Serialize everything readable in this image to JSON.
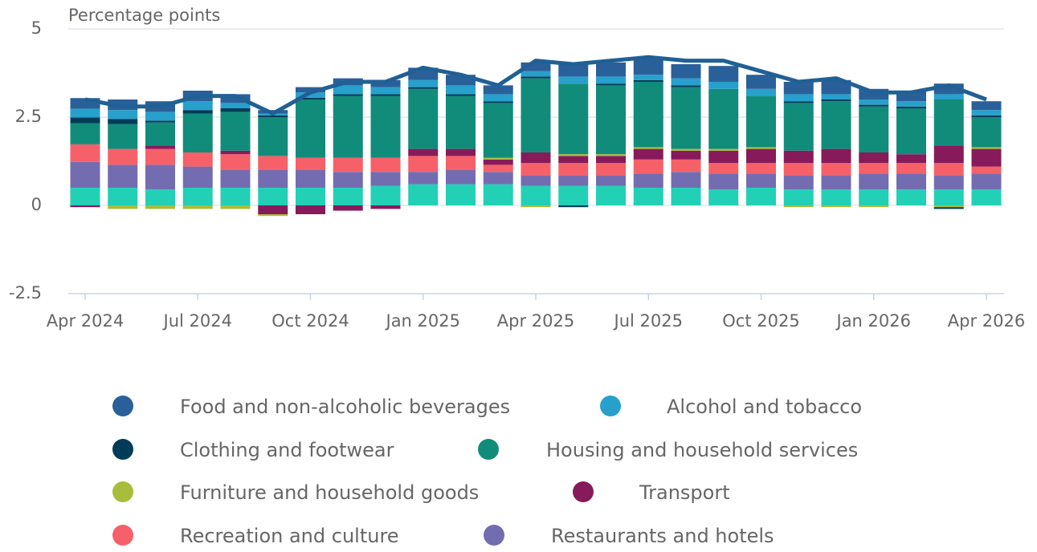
{
  "chart_data": {
    "type": "bar",
    "y_label": "Percentage points",
    "categories": [
      "Apr 2024",
      null,
      null,
      "Jul 2024",
      null,
      null,
      "Oct 2024",
      null,
      null,
      "Jan 2025",
      null,
      null,
      "Apr 2025",
      null,
      null,
      "Jul 2025",
      null,
      null,
      "Oct 2025",
      null,
      null,
      "Jan 2026",
      null,
      null,
      "Apr 2026"
    ],
    "ylim": [
      -2.5,
      5
    ],
    "yticks": [
      -2.5,
      0,
      2.5,
      5
    ],
    "grid": true,
    "stacked": true,
    "series": [
      {
        "name": "Food and non-alcoholic beverages",
        "color": "#2a6099",
        "values": [
          0.3,
          0.3,
          0.3,
          0.3,
          0.25,
          0.1,
          0.15,
          0.2,
          0.2,
          0.35,
          0.3,
          0.25,
          0.25,
          0.35,
          0.4,
          0.45,
          0.4,
          0.45,
          0.4,
          0.35,
          0.4,
          0.3,
          0.3,
          0.3,
          0.25
        ]
      },
      {
        "name": "Alcohol and tobacco",
        "color": "#27a0cc",
        "values": [
          0.25,
          0.25,
          0.25,
          0.25,
          0.15,
          0.05,
          0.15,
          0.25,
          0.2,
          0.2,
          0.25,
          0.2,
          0.15,
          0.2,
          0.2,
          0.15,
          0.2,
          0.2,
          0.2,
          0.2,
          0.15,
          0.15,
          0.15,
          0.15,
          0.15
        ]
      },
      {
        "name": "Clothing and footwear",
        "color": "#003c57",
        "values": [
          0.16,
          0.15,
          0.05,
          0.1,
          0.1,
          0.05,
          0.05,
          0.05,
          0.05,
          0.05,
          0.05,
          0.05,
          0.05,
          -0.05,
          0.05,
          0.05,
          0.05,
          0,
          0,
          0.05,
          0.05,
          0.05,
          0.05,
          -0.05,
          0.05
        ]
      },
      {
        "name": "Housing and household services",
        "color": "#118c7b",
        "values": [
          0.6,
          0.7,
          0.65,
          1.1,
          1.1,
          1.1,
          1.65,
          1.75,
          1.75,
          1.7,
          1.5,
          1.55,
          2.1,
          2.0,
          1.95,
          1.85,
          1.75,
          1.7,
          1.45,
          1.35,
          1.35,
          1.3,
          1.3,
          1.3,
          0.85
        ]
      },
      {
        "name": "Furniture and household goods",
        "color": "#a8bd3a",
        "values": [
          0,
          -0.1,
          -0.1,
          -0.1,
          -0.1,
          -0.05,
          0,
          0,
          0,
          0,
          0,
          0.05,
          -0.05,
          0.05,
          0.05,
          0.05,
          0.05,
          0.05,
          0.05,
          -0.05,
          -0.05,
          -0.05,
          0,
          -0.05,
          0.05
        ]
      },
      {
        "name": "Transport",
        "color": "#871a5b",
        "values": [
          -0.05,
          0,
          0.1,
          0,
          0.1,
          -0.25,
          -0.25,
          -0.15,
          -0.1,
          0.2,
          0.2,
          0.15,
          0.3,
          0.2,
          0.2,
          0.3,
          0.25,
          0.35,
          0.4,
          0.35,
          0.4,
          0.3,
          0.25,
          0.5,
          0.5
        ]
      },
      {
        "name": "Recreation and culture",
        "color": "#f66068",
        "values": [
          0.5,
          0.45,
          0.45,
          0.4,
          0.45,
          0.4,
          0.35,
          0.4,
          0.4,
          0.45,
          0.4,
          0.2,
          0.35,
          0.35,
          0.35,
          0.4,
          0.35,
          0.3,
          0.3,
          0.35,
          0.35,
          0.3,
          0.3,
          0.35,
          0.2
        ]
      },
      {
        "name": "Restaurants and hotels",
        "color": "#746cb1",
        "values": [
          0.73,
          0.65,
          0.7,
          0.6,
          0.5,
          0.5,
          0.5,
          0.45,
          0.4,
          0.35,
          0.4,
          0.35,
          0.3,
          0.3,
          0.3,
          0.4,
          0.45,
          0.45,
          0.4,
          0.4,
          0.4,
          0.45,
          0.45,
          0.4,
          0.45
        ]
      },
      {
        "color": "#22d0b6",
        "values": [
          0.5,
          0.5,
          0.45,
          0.5,
          0.5,
          0.5,
          0.5,
          0.5,
          0.55,
          0.6,
          0.6,
          0.6,
          0.55,
          0.55,
          0.55,
          0.5,
          0.5,
          0.45,
          0.5,
          0.45,
          0.45,
          0.45,
          0.45,
          0.45,
          0.45
        ]
      },
      {
        "type": "line",
        "color": "#206095",
        "values": [
          3.0,
          2.8,
          2.8,
          3.1,
          3.1,
          2.6,
          3.2,
          3.5,
          3.5,
          3.9,
          3.7,
          3.4,
          4.1,
          4.0,
          4.1,
          4.2,
          4.1,
          4.1,
          3.8,
          3.5,
          3.6,
          3.2,
          3.2,
          3.4,
          3.0
        ]
      }
    ]
  }
}
